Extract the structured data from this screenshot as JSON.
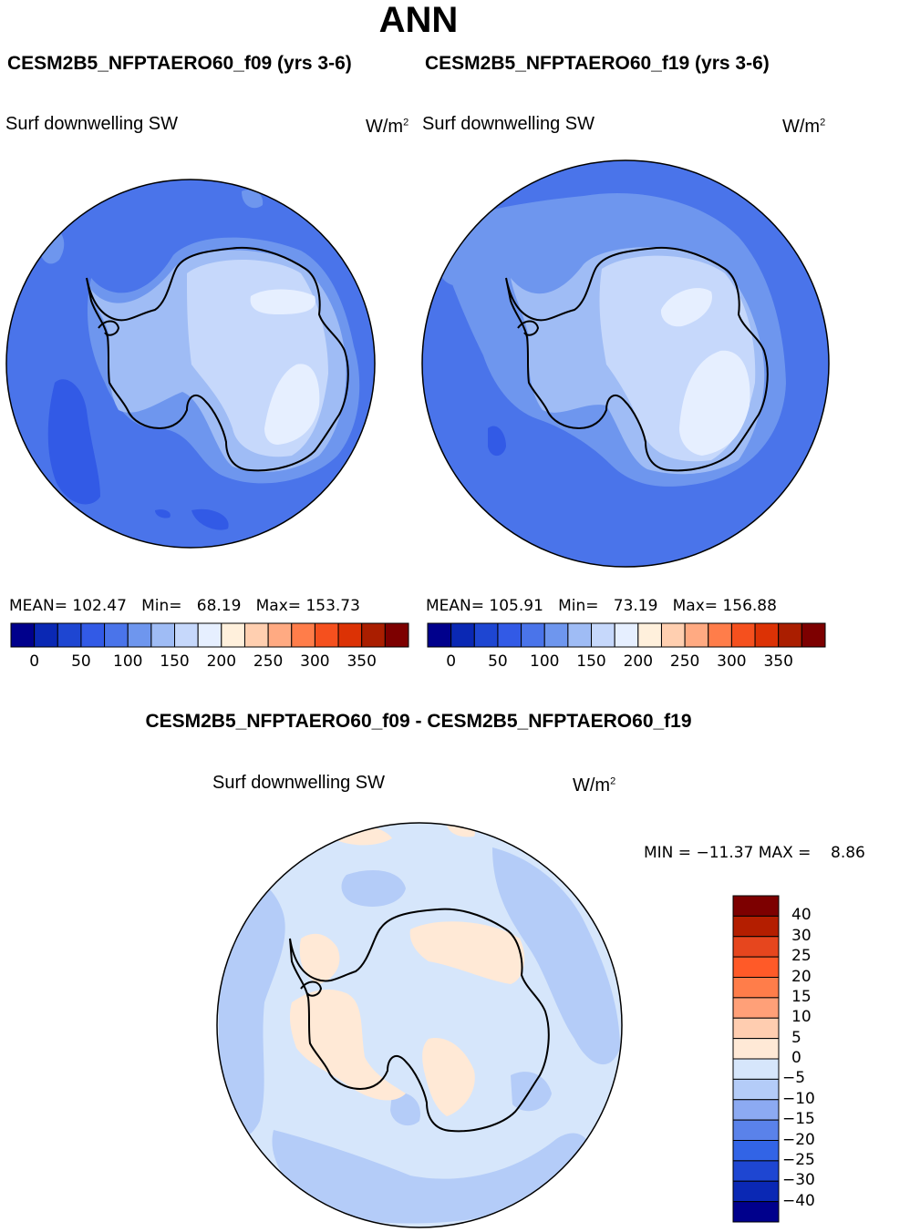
{
  "header": {
    "season": "ANN",
    "run_left": "CESM2B5_NFPTAERO60_f09 (yrs 3-6)",
    "run_right": "CESM2B5_NFPTAERO60_f19 (yrs 3-6)",
    "diff_title": "CESM2B5_NFPTAERO60_f09 - CESM2B5_NFPTAERO60_f19"
  },
  "panels": [
    {
      "variable": "Surf downwelling SW",
      "units": "W/m",
      "units_exp": "2",
      "mean_label": "MEAN=",
      "mean": "102.47",
      "min_label": "Min=",
      "min": "68.19",
      "max_label": "Max=",
      "max": "153.73"
    },
    {
      "variable": "Surf downwelling SW",
      "units": "W/m",
      "units_exp": "2",
      "mean_label": "MEAN=",
      "mean": "105.91",
      "min_label": "Min=",
      "min": "73.19",
      "max_label": "Max=",
      "max": "156.88"
    },
    {
      "variable": "Surf downwelling SW",
      "units": "W/m",
      "units_exp": "2",
      "min_label": "MIN =",
      "min": "−11.37",
      "max_label": "MAX =",
      "max": "8.86"
    }
  ],
  "chart_data": [
    {
      "type": "heatmap",
      "projection": "south-polar-stereographic",
      "title": "CESM2B5_NFPTAERO60_f09 (yrs 3-6)",
      "variable": "Surf downwelling SW",
      "units": "W/m2",
      "stats": {
        "mean": 102.47,
        "min": 68.19,
        "max": 153.73
      },
      "colorbar": {
        "levels": [
          0,
          25,
          50,
          75,
          100,
          125,
          150,
          175,
          200,
          225,
          250,
          275,
          300,
          325,
          350
        ],
        "tick_labels": [
          "0",
          "50",
          "100",
          "150",
          "200",
          "250",
          "300",
          "350"
        ],
        "colors": [
          "#00008c",
          "#0a28b4",
          "#1e46d2",
          "#325ae6",
          "#4a74ea",
          "#6e96ee",
          "#9fbcf5",
          "#c6d8fb",
          "#e6efff",
          "#fff0dc",
          "#ffcfb0",
          "#ffaa82",
          "#ff7d4a",
          "#f5501e",
          "#dc3205",
          "#aa1e00",
          "#7d0000"
        ]
      },
      "field": {
        "ocean": "#4a74ea",
        "coastal_ring": "#6e96ee",
        "continent": "#9fbcf5",
        "plateau": "#c6d8fb",
        "dark_patches": "#325ae6"
      }
    },
    {
      "type": "heatmap",
      "projection": "south-polar-stereographic",
      "title": "CESM2B5_NFPTAERO60_f19 (yrs 3-6)",
      "variable": "Surf downwelling SW",
      "units": "W/m2",
      "stats": {
        "mean": 105.91,
        "min": 73.19,
        "max": 156.88
      },
      "colorbar": {
        "levels": [
          0,
          25,
          50,
          75,
          100,
          125,
          150,
          175,
          200,
          225,
          250,
          275,
          300,
          325,
          350
        ],
        "tick_labels": [
          "0",
          "50",
          "100",
          "150",
          "200",
          "250",
          "300",
          "350"
        ]
      },
      "field": {
        "ocean": "#4a74ea",
        "coastal_ring": "#6e96ee",
        "continent": "#9fbcf5",
        "plateau": "#c6d8fb",
        "dark_patches": "#325ae6"
      }
    },
    {
      "type": "heatmap",
      "projection": "south-polar-stereographic",
      "title": "CESM2B5_NFPTAERO60_f09 - CESM2B5_NFPTAERO60_f19",
      "variable": "Surf downwelling SW",
      "units": "W/m2",
      "stats": {
        "min": -11.37,
        "max": 8.86
      },
      "colorbar": {
        "orientation": "vertical",
        "tick_labels": [
          "40",
          "30",
          "25",
          "20",
          "15",
          "10",
          "5",
          "0",
          "−5",
          "−10",
          "−15",
          "−20",
          "−25",
          "−30",
          "−40"
        ],
        "colors": [
          "#7d0000",
          "#b41e00",
          "#e6461e",
          "#ff5a28",
          "#ff7d4a",
          "#ffa078",
          "#ffcdb0",
          "#ffe9d6",
          "#d6e6fb",
          "#b4ccf8",
          "#8caaf2",
          "#5a82ea",
          "#3264e6",
          "#1e46d2",
          "#0a28b4",
          "#00008c"
        ]
      },
      "field": {
        "background": "#d6e6fb",
        "negative": "#b4ccf8",
        "positive": "#ffe9d6"
      }
    }
  ]
}
